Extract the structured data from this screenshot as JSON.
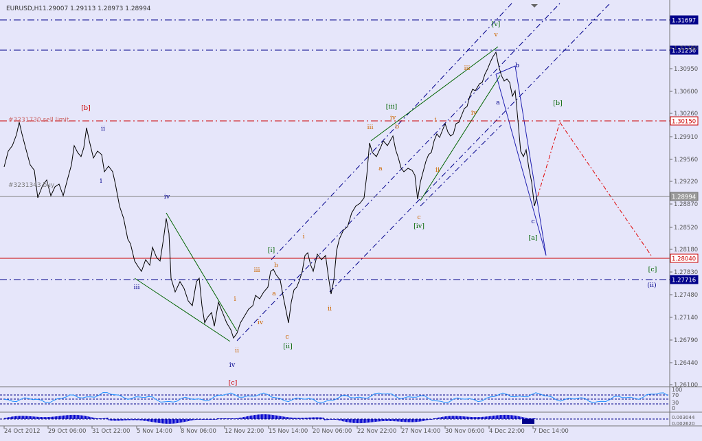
{
  "header": {
    "symbol": "EURUSD,H1",
    "ohlc": "1.29007 1.29113 1.28973 1.28994"
  },
  "colors": {
    "background": "#e6e6fa",
    "navy_line": "#00008b",
    "red_line": "#cc0000",
    "grey_line": "#808080",
    "price": "#000000",
    "wave_green": "#006400",
    "wave_orange": "#cc6600",
    "wave_blue": "#00008b",
    "wave_red": "#cc0000",
    "projection": "#e00000",
    "blue_triangle": "#2020b0",
    "current_tag": "#9a9a9a"
  },
  "price_scale": {
    "ticks": [
      "1.31260",
      "1.30950",
      "1.30600",
      "1.30260",
      "1.29910",
      "1.29560",
      "1.29220",
      "1.28870",
      "1.28520",
      "1.28180",
      "1.27830",
      "1.27480",
      "1.27140",
      "1.26790",
      "1.26440",
      "1.26100"
    ]
  },
  "horizontal_levels": [
    {
      "label": "1.31697",
      "price": 1.31697,
      "style": "navy"
    },
    {
      "label": "1.31236",
      "price": 1.31236,
      "style": "navy"
    },
    {
      "label": "1.30150",
      "price": 1.3015,
      "style": "red-dash"
    },
    {
      "label": "1.28994",
      "price": 1.28994,
      "style": "current"
    },
    {
      "label": "1.28040",
      "price": 1.2804,
      "style": "red-solid"
    },
    {
      "label": "1.27716",
      "price": 1.27716,
      "style": "navy"
    }
  ],
  "order_labels": [
    {
      "text": "#3231730 sell limit"
    },
    {
      "text": "#3231343 buy"
    }
  ],
  "time_axis": {
    "ticks": [
      "24 Oct 2012",
      "29 Oct 06:00",
      "31 Oct 22:00",
      "5 Nov 14:00",
      "8 Nov 06:00",
      "12 Nov 22:00",
      "15 Nov 14:00",
      "20 Nov 06:00",
      "22 Nov 22:00",
      "27 Nov 14:00",
      "30 Nov 06:00",
      "4 Dec 22:00",
      "7 Dec 14:00"
    ]
  },
  "wave_labels": [
    {
      "text": "[b]",
      "color": "red"
    },
    {
      "text": "ii",
      "color": "blue"
    },
    {
      "text": "i",
      "color": "blue"
    },
    {
      "text": "iv",
      "color": "blue"
    },
    {
      "text": "iii",
      "color": "blue"
    },
    {
      "text": "iv",
      "color": "blue"
    },
    {
      "text": "ii",
      "color": "orange"
    },
    {
      "text": "[c]",
      "color": "red"
    },
    {
      "text": "i",
      "color": "orange"
    },
    {
      "text": "iii",
      "color": "orange"
    },
    {
      "text": "[i]",
      "color": "green"
    },
    {
      "text": "b",
      "color": "orange"
    },
    {
      "text": "a",
      "color": "orange"
    },
    {
      "text": "iv",
      "color": "orange"
    },
    {
      "text": "c",
      "color": "orange"
    },
    {
      "text": "[ii]",
      "color": "green"
    },
    {
      "text": "i",
      "color": "orange"
    },
    {
      "text": "ii",
      "color": "orange"
    },
    {
      "text": "iii",
      "color": "orange"
    },
    {
      "text": "[iii]",
      "color": "green"
    },
    {
      "text": "a",
      "color": "orange"
    },
    {
      "text": "iv",
      "color": "orange"
    },
    {
      "text": "b",
      "color": "orange"
    },
    {
      "text": "c",
      "color": "orange"
    },
    {
      "text": "[iv]",
      "color": "green"
    },
    {
      "text": "i",
      "color": "orange"
    },
    {
      "text": "ii",
      "color": "orange"
    },
    {
      "text": "iii",
      "color": "orange"
    },
    {
      "text": "iv",
      "color": "orange"
    },
    {
      "text": "v",
      "color": "orange"
    },
    {
      "text": "[v]",
      "color": "green"
    },
    {
      "text": "b",
      "color": "blue"
    },
    {
      "text": "a",
      "color": "blue"
    },
    {
      "text": "c",
      "color": "blue"
    },
    {
      "text": "[a]",
      "color": "green"
    },
    {
      "text": "[b]",
      "color": "green"
    },
    {
      "text": "[c]",
      "color": "green"
    },
    {
      "text": "(ii)",
      "color": "blue"
    }
  ],
  "indicators": {
    "rsi_ticks": [
      "100",
      "70",
      "30",
      "0"
    ],
    "macd_ticks": [
      "0.003044",
      "0.002620"
    ]
  }
}
